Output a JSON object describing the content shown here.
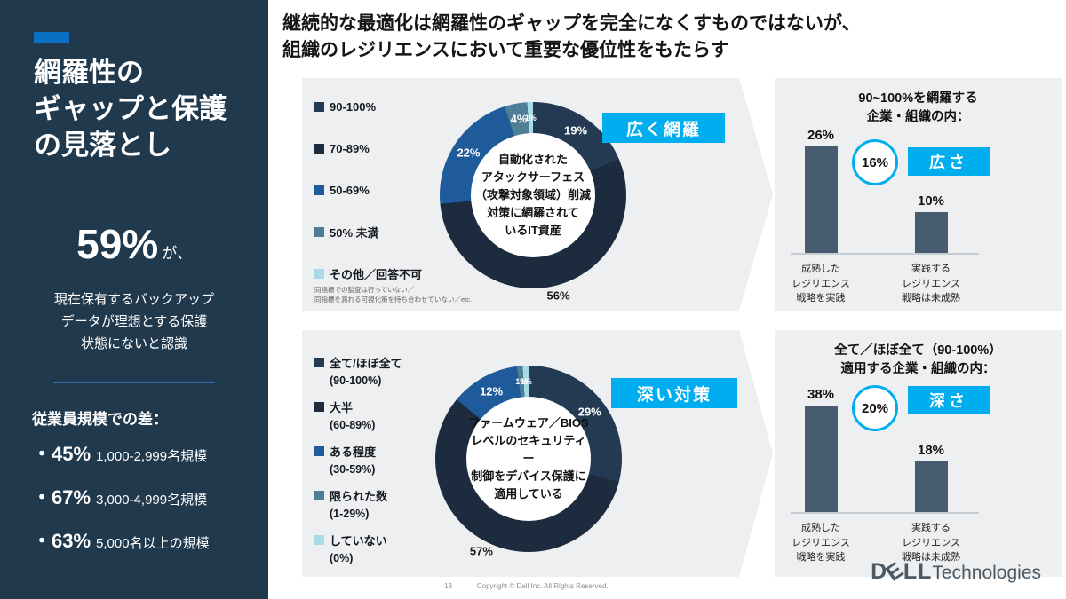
{
  "sidebar": {
    "title_lines": [
      "網羅性の",
      "ギャップと保護",
      "の見落とし"
    ],
    "stat_value": "59%",
    "stat_suffix": "が、",
    "stat_desc_lines": [
      "現在保有するバックアップ",
      "データが理想とする保護",
      "状態にないと認識"
    ],
    "diff_label": "従業員規模での差：",
    "diff_items": [
      {
        "pct": "・45%",
        "desc": "1,000-2,999名規模"
      },
      {
        "pct": "・67%",
        "desc": "3,000-4,999名規模"
      },
      {
        "pct": "・63%",
        "desc": "5,000名以上の規模"
      }
    ],
    "bg_color": "#21394d",
    "accent_color": "#0b6fc2"
  },
  "header": {
    "title_lines": [
      "継続的な最適化は網羅性のギャップを完全になくすものではないが、",
      "組織のレジリエンスにおいて重要な優位性をもたらす"
    ]
  },
  "chart_data": [
    {
      "type": "pie",
      "id": "donut1",
      "tag": "広く網羅",
      "center_lines": [
        "自動化された",
        "アタックサーフェス",
        "（攻撃対象領域）削減",
        "対策に網羅されて",
        "いるIT資産"
      ],
      "segments": [
        {
          "legend": "90-100%",
          "value": 19,
          "label": "19%",
          "color": "#243a52"
        },
        {
          "legend": "70-89%",
          "value": 56,
          "label": "56%",
          "color": "#1c2b3e"
        },
        {
          "legend": "50-69%",
          "value": 22,
          "label": "22%",
          "color": "#1f5a9b"
        },
        {
          "legend": "50% 未満",
          "value": 4,
          "label": "4%",
          "color": "#4f7f96"
        },
        {
          "legend": "その他／回答不可",
          "value": 1,
          "label": "1%",
          "color": "#a9dbe6"
        }
      ],
      "legend_note": [
        "同指標での監査は行っていない／",
        "同指標を測れる可視化策を持ち合わせていない／etc."
      ]
    },
    {
      "type": "pie",
      "id": "donut2",
      "tag": "深い対策",
      "center_lines": [
        "ファームウェア／BIOS",
        "レベルのセキュリティー",
        "制御をデバイス保護に",
        "適用している"
      ],
      "segments": [
        {
          "legend": "全て/ほぼ全て",
          "legend2": "(90-100%)",
          "value": 29,
          "label": "29%",
          "color": "#243a52"
        },
        {
          "legend": "大半",
          "legend2": "(60-89%)",
          "value": 57,
          "label": "57%",
          "color": "#1c2b3e"
        },
        {
          "legend": "ある程度",
          "legend2": "(30-59%)",
          "value": 12,
          "label": "12%",
          "color": "#1f5a9b"
        },
        {
          "legend": "限られた数",
          "legend2": "(1-29%)",
          "value": 1,
          "label": "1%",
          "color": "#4f7f96"
        },
        {
          "legend": "していない",
          "legend2": "(0%)",
          "value": 1,
          "label": "1%",
          "color": "#a9dbe6"
        }
      ]
    },
    {
      "type": "bar",
      "id": "panel1",
      "title_lines": [
        "90~100%を網羅する",
        "企業・組織の内："
      ],
      "badge": "16%",
      "tag": "広さ",
      "ylim": [
        0,
        30
      ],
      "bars": [
        {
          "value": 26,
          "label": "26%",
          "caption": [
            "成熟した",
            "レジリエンス",
            "戦略を実践"
          ]
        },
        {
          "value": 10,
          "label": "10%",
          "caption": [
            "実践する",
            "レジリエンス",
            "戦略は未成熟"
          ]
        }
      ],
      "bar_color": "#465b6e"
    },
    {
      "type": "bar",
      "id": "panel2",
      "title_lines": [
        "全て／ほぼ全て（90-100%）",
        "適用する企業・組織の内："
      ],
      "badge": "20%",
      "tag": "深さ",
      "ylim": [
        0,
        40
      ],
      "bars": [
        {
          "value": 38,
          "label": "38%",
          "caption": [
            "成熟した",
            "レジリエンス",
            "戦略を実践"
          ]
        },
        {
          "value": 18,
          "label": "18%",
          "caption": [
            "実践する",
            "レジリエンス",
            "戦略は未成熟"
          ]
        }
      ],
      "bar_color": "#465b6e"
    }
  ],
  "accent_cyan": "#00aeef",
  "footer": {
    "page_number": "13",
    "copyright": "Copyright © Dell Inc. All Rights Reserved.",
    "logo": {
      "d": "D",
      "e": "E",
      "ll": "LL",
      "suffix": "Technologies"
    }
  }
}
